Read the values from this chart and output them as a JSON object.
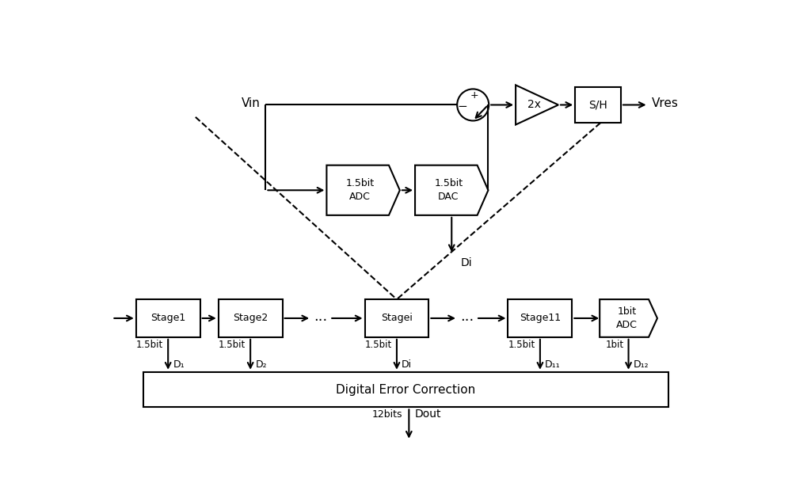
{
  "fig_width": 10.0,
  "fig_height": 6.29,
  "dpi": 100,
  "bg_color": "#ffffff",
  "line_color": "#000000",
  "lw": 1.5,
  "vin_label": "Vin",
  "vres_label": "Vres",
  "gain_label": "2x",
  "sh_label": "S/H",
  "adc_top_label": "1.5bit\nADC",
  "dac_label": "1.5bit\nDAC",
  "di_top_label": "Di",
  "plus_label": "+",
  "minus_label": "−",
  "stages": [
    "Stage1",
    "Stage2",
    "...",
    "Stagei",
    "...",
    "Stage11"
  ],
  "last_block_label": "1bit\nADC",
  "dec_label": "Digital Error Correction",
  "dout_label": "Dout",
  "bits_label": "12bits",
  "stage_bits": [
    "1.5bit",
    "1.5bit",
    "",
    "1.5bit",
    "",
    "1.5bit",
    "1bit"
  ],
  "d_labels": [
    "D₁",
    "D₂",
    "",
    "Di",
    "",
    "D₁₁",
    "D₁₂"
  ]
}
